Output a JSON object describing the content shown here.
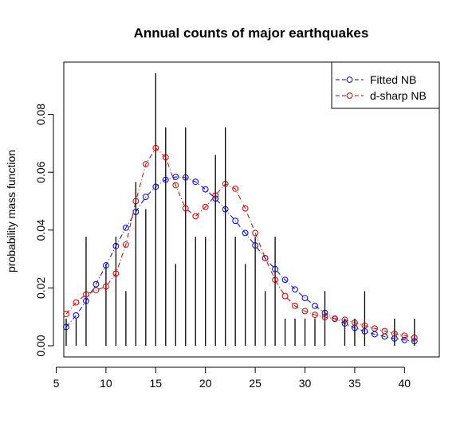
{
  "chart_data": {
    "type": "line",
    "title": "Annual counts of major earthquakes",
    "xlabel": "",
    "ylabel": "probability mass function",
    "xlim": [
      5,
      42
    ],
    "ylim": [
      0,
      0.094
    ],
    "xticks": [
      5,
      10,
      15,
      20,
      25,
      30,
      35,
      40
    ],
    "yticks": [
      0.0,
      0.02,
      0.04,
      0.06,
      0.08
    ],
    "ytick_labels": [
      "0.00",
      "0.02",
      "0.04",
      "0.06",
      "0.08"
    ],
    "grid": false,
    "legend_position": "top-right",
    "observed_bars": {
      "x": [
        6,
        7,
        8,
        9,
        10,
        11,
        12,
        13,
        14,
        15,
        16,
        17,
        18,
        19,
        20,
        21,
        22,
        23,
        24,
        25,
        26,
        27,
        28,
        29,
        30,
        31,
        32,
        33,
        34,
        35,
        36,
        37,
        38,
        39,
        40,
        41
      ],
      "values": [
        0.0094,
        0.0094,
        0.0377,
        0,
        0.0283,
        0.0377,
        0.0189,
        0.0566,
        0.0472,
        0.0943,
        0.0755,
        0.0283,
        0.0755,
        0.0377,
        0.0377,
        0.066,
        0.0755,
        0.0377,
        0.0283,
        0.0377,
        0.0189,
        0.0377,
        0.0094,
        0.0094,
        0.0094,
        0.0094,
        0.0189,
        0,
        0.0094,
        0.0094,
        0.0189,
        0,
        0,
        0.0094,
        0,
        0.0094
      ]
    },
    "series": [
      {
        "name": "Fitted NB",
        "color": "#0000cc",
        "x": [
          6,
          7,
          8,
          9,
          10,
          11,
          12,
          13,
          14,
          15,
          16,
          17,
          18,
          19,
          20,
          21,
          22,
          23,
          24,
          25,
          26,
          27,
          28,
          29,
          30,
          31,
          32,
          33,
          34,
          35,
          36,
          37,
          38,
          39,
          40,
          41
        ],
        "values": [
          0.0065,
          0.0105,
          0.0155,
          0.0213,
          0.0278,
          0.0345,
          0.0408,
          0.0463,
          0.0515,
          0.055,
          0.0574,
          0.0584,
          0.0582,
          0.0567,
          0.0541,
          0.0509,
          0.0472,
          0.0432,
          0.039,
          0.0347,
          0.0303,
          0.0265,
          0.0228,
          0.0195,
          0.0165,
          0.0138,
          0.0114,
          0.0093,
          0.0077,
          0.0062,
          0.005,
          0.004,
          0.0032,
          0.0025,
          0.002,
          0.0016
        ]
      },
      {
        "name": "d-sharp NB",
        "color": "#cc0000",
        "x": [
          6,
          7,
          8,
          9,
          10,
          11,
          12,
          13,
          14,
          15,
          16,
          17,
          18,
          19,
          20,
          21,
          22,
          23,
          24,
          25,
          26,
          27,
          28,
          29,
          30,
          31,
          32,
          33,
          34,
          35,
          36,
          37,
          38,
          39,
          40,
          41
        ],
        "values": [
          0.011,
          0.015,
          0.0178,
          0.0192,
          0.0205,
          0.025,
          0.035,
          0.05,
          0.0628,
          0.0684,
          0.0652,
          0.0555,
          0.0475,
          0.0448,
          0.048,
          0.052,
          0.056,
          0.0543,
          0.0475,
          0.039,
          0.0303,
          0.0228,
          0.0172,
          0.0138,
          0.012,
          0.0107,
          0.0099,
          0.0094,
          0.009,
          0.008,
          0.007,
          0.006,
          0.0051,
          0.0042,
          0.0035,
          0.0028
        ]
      }
    ]
  }
}
